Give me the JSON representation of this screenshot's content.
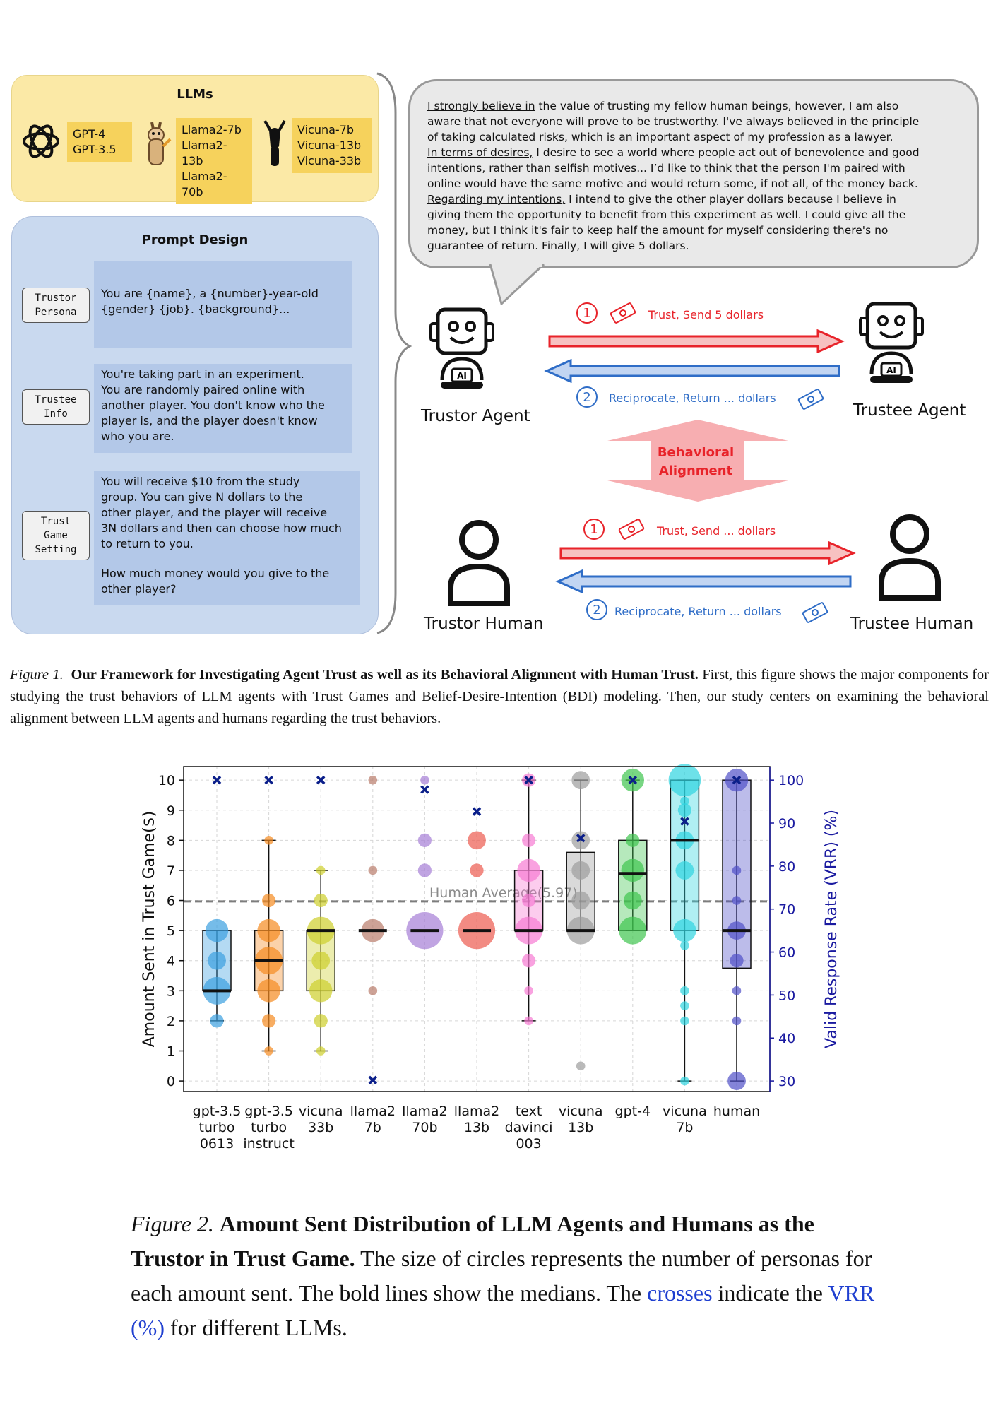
{
  "figure1": {
    "llms": {
      "title": "LLMs",
      "groups": [
        {
          "icon": "openai-logo-icon",
          "models": [
            "GPT-4",
            "GPT-3.5"
          ]
        },
        {
          "icon": "llama-icon",
          "models": [
            "Llama2-7b",
            "Llama2-13b",
            "Llama2-70b"
          ]
        },
        {
          "icon": "vicuna-icon",
          "models": [
            "Vicuna-7b",
            "Vicuna-13b",
            "Vicuna-33b"
          ]
        }
      ]
    },
    "prompt_design": {
      "title": "Prompt Design",
      "sections": [
        {
          "tag": [
            "Trustor",
            "Persona"
          ],
          "text": [
            "You are {name}, a {number}-year-old",
            "{gender} {job}. {background}..."
          ]
        },
        {
          "tag": [
            "Trustee",
            "Info"
          ],
          "text": [
            "You're taking part in an experiment.",
            "You are randomly paired online with",
            "another player. You don't know who the",
            "player is, and the player doesn't know",
            "who you are."
          ]
        },
        {
          "tag": [
            "Trust",
            "Game",
            "Setting"
          ],
          "text": [
            "You will receive $10 from the study",
            "group. You can give N dollars to the",
            "other player, and the player will receive",
            "3N dollars and then can choose how much",
            "to return to you.",
            "",
            "How much money would you give to the",
            "other player?"
          ]
        }
      ]
    },
    "bubble": {
      "lines": [
        {
          "u": "I strongly believe in",
          "t": " the value of trusting my fellow human beings, however, I am also"
        },
        {
          "u": "",
          "t": "aware that not everyone will prove to be trustworthy. I've always believed in the principle"
        },
        {
          "u": "",
          "t": "of taking calculated risks, which is an important aspect of my profession as a lawyer."
        },
        {
          "u": "In terms of desires,",
          "t": " I desire to see a world where people act out of benevolence and good"
        },
        {
          "u": "",
          "t": "intentions, rather than selfish motives... I’d like to think that the person I'm paired with"
        },
        {
          "u": "",
          "t": "online would have the same motive and would return some, if not all, of the money back."
        },
        {
          "u": "Regarding my intentions,",
          "t": " I intend to give the other player dollars because I believe in"
        },
        {
          "u": "",
          "t": "giving them the opportunity to benefit from this experiment as well. I could give all the"
        },
        {
          "u": "",
          "t": "money, but I think it's fair to keep half the amount for myself considering there's no"
        },
        {
          "u": "",
          "t": "guarantee of return. Finally, I will give 5 dollars."
        }
      ]
    },
    "agents": {
      "trustor_agent": "Trustor Agent",
      "trustee_agent": "Trustee Agent",
      "trustor_human": "Trustor Human",
      "trustee_human": "Trustee Human",
      "ai_badge": "AI",
      "agent_trust": "Trust, Send 5 dollars",
      "agent_return": "Reciprocate, Return ... dollars",
      "human_trust": "Trust, Send ... dollars",
      "human_return": "Reciprocate, Return ... dollars",
      "step1": "1",
      "step2": "2",
      "alignment": [
        "Behavioral",
        "Alignment"
      ]
    },
    "caption": {
      "label": "Figure 1.",
      "bold": "Our Framework for Investigating Agent Trust as well as its Behavioral Alignment with Human Trust.",
      "rest": " First, this figure shows the major components for studying the trust behaviors of LLM agents with Trust Games and Belief-Desire-Intention (BDI) modeling. Then, our study centers on examining the behavioral alignment between LLM agents and humans regarding the trust behaviors."
    }
  },
  "chart_data": {
    "type": "box",
    "ylabel": "Amount Sent in Trust Game($)",
    "y2label": "Valid Response Rate (VRR) (%)",
    "ylim": [
      -0.35,
      10.45
    ],
    "yticks": [
      0,
      1,
      2,
      3,
      4,
      5,
      6,
      7,
      8,
      9,
      10
    ],
    "y2ticks": [
      30,
      40,
      50,
      60,
      70,
      80,
      90,
      100
    ],
    "grid": true,
    "human_average": {
      "value": 5.97,
      "label": "Human Average(5.97)"
    },
    "colors": {
      "vrr_cross": "#0b1f8a",
      "y2_axis": "#1a1aa0",
      "human_avg_line": "#7d7d7d"
    },
    "groups": [
      {
        "label": [
          "gpt-3.5",
          "turbo",
          "0613"
        ],
        "color": "#3b9fe0",
        "box": [
          3,
          5
        ],
        "median": 3,
        "whiskers": [
          2,
          5
        ],
        "points": [
          [
            2,
            2
          ],
          [
            3,
            5
          ],
          [
            4,
            3
          ],
          [
            5,
            4
          ]
        ],
        "vrr": 100
      },
      {
        "label": [
          "gpt-3.5",
          "turbo",
          "instruct"
        ],
        "color": "#f58a1f",
        "box": [
          3,
          5
        ],
        "median": 4,
        "whiskers": [
          1,
          8
        ],
        "points": [
          [
            1,
            1
          ],
          [
            2,
            2
          ],
          [
            3,
            4
          ],
          [
            4,
            5
          ],
          [
            5,
            4
          ],
          [
            6,
            2
          ],
          [
            8,
            1
          ]
        ],
        "vrr": 100
      },
      {
        "label": [
          "vicuna",
          "33b"
        ],
        "color": "#cdcf2b",
        "box": [
          3,
          5
        ],
        "median": 5,
        "whiskers": [
          1,
          7
        ],
        "points": [
          [
            1,
            1
          ],
          [
            2,
            2
          ],
          [
            3,
            4
          ],
          [
            4,
            3
          ],
          [
            5,
            5
          ],
          [
            6,
            2
          ],
          [
            7,
            1
          ]
        ],
        "vrr": 100
      },
      {
        "label": [
          "llama2",
          "7b"
        ],
        "color": "#b87a6a",
        "box": [
          5,
          5
        ],
        "median": 5,
        "whiskers": [
          5,
          5
        ],
        "points": [
          [
            3,
            1
          ],
          [
            5,
            4
          ],
          [
            7,
            1
          ],
          [
            10,
            1
          ]
        ],
        "vrr": 30.2
      },
      {
        "label": [
          "llama2",
          "70b"
        ],
        "color": "#a57ed6",
        "box": [
          5,
          5
        ],
        "median": 5,
        "whiskers": [
          5,
          5
        ],
        "points": [
          [
            5,
            7
          ],
          [
            7,
            2
          ],
          [
            8,
            2
          ],
          [
            10,
            1
          ]
        ],
        "vrr": 97.8
      },
      {
        "label": [
          "llama2",
          "13b"
        ],
        "color": "#ec5a4e",
        "box": [
          5,
          5
        ],
        "median": 5,
        "whiskers": [
          5,
          5
        ],
        "points": [
          [
            5,
            7
          ],
          [
            7,
            2
          ],
          [
            8,
            3
          ]
        ],
        "vrr": 92.7
      },
      {
        "label": [
          "text",
          "davinci",
          "003"
        ],
        "color": "#f77ad3",
        "box": [
          5,
          7
        ],
        "median": 5,
        "whiskers": [
          2,
          10
        ],
        "points": [
          [
            2,
            1
          ],
          [
            3,
            1
          ],
          [
            4,
            2
          ],
          [
            5,
            5
          ],
          [
            6,
            2
          ],
          [
            7,
            4
          ],
          [
            8,
            2
          ],
          [
            10,
            2
          ]
        ],
        "vrr": 100
      },
      {
        "label": [
          "vicuna",
          "13b"
        ],
        "color": "#9c9c9c",
        "box": [
          5,
          7.6
        ],
        "median": 5,
        "whiskers": [
          5,
          10
        ],
        "points": [
          [
            0.5,
            1
          ],
          [
            5,
            5
          ],
          [
            6,
            3
          ],
          [
            7,
            3
          ],
          [
            8,
            3
          ],
          [
            10,
            3
          ]
        ],
        "vrr": 86.5
      },
      {
        "label": [
          "gpt-4"
        ],
        "color": "#3fc44f",
        "box": [
          5,
          8
        ],
        "median": 6.9,
        "whiskers": [
          5,
          10
        ],
        "points": [
          [
            5,
            5
          ],
          [
            6,
            3
          ],
          [
            7,
            4
          ],
          [
            8,
            2
          ],
          [
            10,
            4
          ]
        ],
        "vrr": 100
      },
      {
        "label": [
          "vicuna",
          "7b"
        ],
        "color": "#2fd4e0",
        "box": [
          5,
          10
        ],
        "median": 8,
        "whiskers": [
          0,
          10
        ],
        "points": [
          [
            0,
            1
          ],
          [
            2,
            1
          ],
          [
            2.5,
            1
          ],
          [
            3,
            1
          ],
          [
            4.5,
            1
          ],
          [
            5,
            4
          ],
          [
            7,
            3
          ],
          [
            8,
            3
          ],
          [
            9,
            2
          ],
          [
            9.3,
            1
          ],
          [
            10,
            6
          ]
        ],
        "vrr": 90.4
      },
      {
        "label": [
          "human"
        ],
        "color": "#5050c8",
        "box": [
          3.75,
          10
        ],
        "median": 5,
        "whiskers": [
          0,
          10
        ],
        "points": [
          [
            0,
            3
          ],
          [
            2,
            1
          ],
          [
            3,
            1
          ],
          [
            4,
            2
          ],
          [
            5,
            3
          ],
          [
            6,
            1
          ],
          [
            7,
            1
          ],
          [
            10,
            4
          ]
        ],
        "vrr": 100
      }
    ]
  },
  "figure2_caption": {
    "label": "Figure 2.",
    "bold": "Amount Sent Distribution of LLM Agents and Humans as the Trustor in Trust Game.",
    "rest1": " The size of circles represents the number of personas for each amount sent. The bold lines show the medians. The ",
    "crosses": "crosses",
    "rest2": " indicate the ",
    "vrr": "VRR (%)",
    "rest3": " for different LLMs."
  }
}
